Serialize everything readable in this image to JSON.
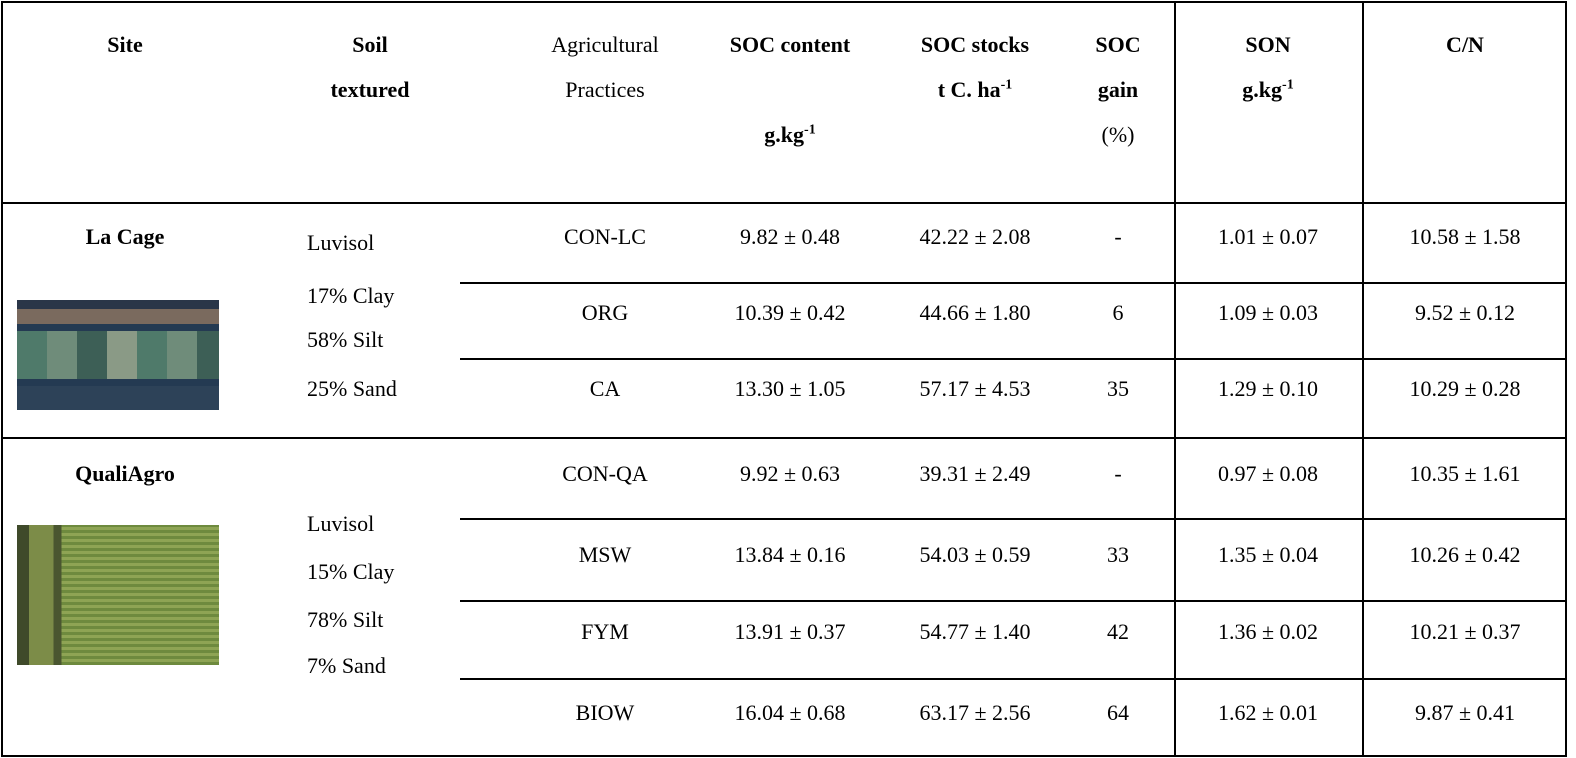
{
  "table": {
    "header": {
      "site": "Site",
      "soil": [
        "Soil",
        "textured"
      ],
      "practices": [
        "Agricultural",
        "Practices"
      ],
      "soc_content": {
        "title": "SOC content",
        "unit": "g.kg",
        "sup": "-1"
      },
      "soc_stocks": {
        "title": "SOC stocks",
        "unit": "t C. ha",
        "sup": "-1"
      },
      "soc_gain": {
        "lines": [
          "SOC",
          "gain"
        ],
        "unit": "(%)"
      },
      "son": {
        "title": "SON",
        "unit": "g.kg",
        "sup": "-1"
      },
      "cn": "C/N"
    },
    "sites": [
      {
        "name": "La Cage",
        "soil": [
          "Luvisol",
          "17% Clay",
          "58% Silt",
          "25% Sand"
        ],
        "rows": [
          [
            "CON-LC",
            "9.82 ± 0.48",
            "42.22 ± 2.08",
            "-",
            "1.01 ± 0.07",
            "10.58 ± 1.58"
          ],
          [
            "ORG",
            "10.39 ± 0.42",
            "44.66 ± 1.80",
            "6",
            "1.09 ± 0.03",
            "9.52 ± 0.12"
          ],
          [
            "CA",
            "13.30 ± 1.05",
            "57.17 ± 4.53",
            "35",
            "1.29 ± 0.10",
            "10.29 ± 0.28"
          ]
        ]
      },
      {
        "name": "QualiAgro",
        "soil": [
          "Luvisol",
          "15% Clay",
          "78% Silt",
          "7% Sand"
        ],
        "rows": [
          [
            "CON-QA",
            "9.92 ± 0.63",
            "39.31 ± 2.49",
            "-",
            "0.97 ± 0.08",
            "10.35 ± 1.61"
          ],
          [
            "MSW",
            "13.84 ± 0.16",
            "54.03 ± 0.59",
            "33",
            "1.35 ± 0.04",
            "10.26 ± 0.42"
          ],
          [
            "FYM",
            "13.91 ± 0.37",
            "54.77 ± 1.40",
            "42",
            "1.36 ± 0.02",
            "10.21 ± 0.37"
          ],
          [
            "BIOW",
            "16.04 ± 0.68",
            "63.17 ± 2.56",
            "64",
            "1.62 ± 0.01",
            "9.87 ± 0.41"
          ]
        ]
      }
    ]
  }
}
